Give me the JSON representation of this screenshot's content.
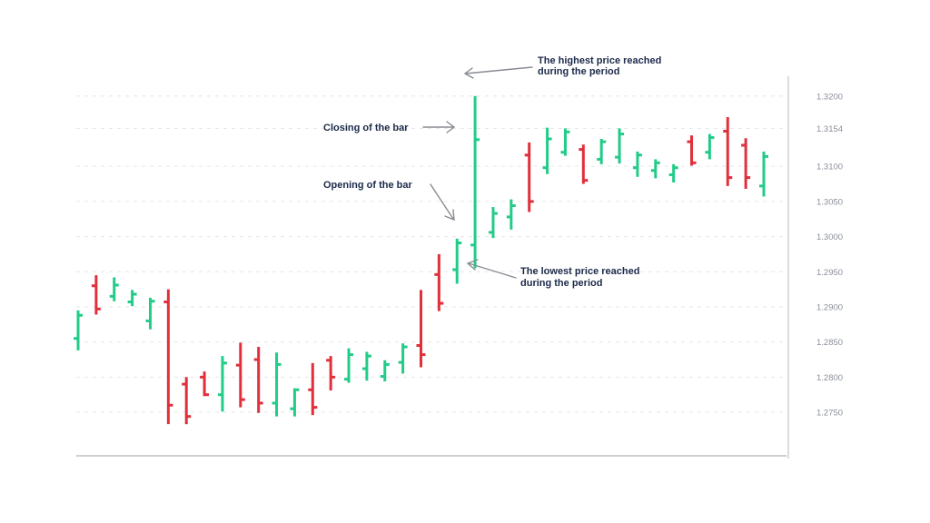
{
  "chart_data": {
    "type": "ohlc-bar",
    "title": "",
    "xlabel": "",
    "ylabel": "",
    "ylim": [
      1.2688,
      1.3223
    ],
    "y_ticks": [
      "1.3200",
      "1.3154",
      "1.3100",
      "1.3050",
      "1.3000",
      "1.2950",
      "1.2900",
      "1.2850",
      "1.2800",
      "1.2750"
    ],
    "grid": true,
    "colors": {
      "up": "#22cc88",
      "down": "#e0303c",
      "grid": "#e3e6ea",
      "axis": "#9aa0a8",
      "text": "#1c2a4a"
    },
    "bars": [
      {
        "open": 1.2855,
        "high": 1.2895,
        "low": 1.2838,
        "close": 1.2888
      },
      {
        "open": 1.293,
        "high": 1.2945,
        "low": 1.2889,
        "close": 1.2897
      },
      {
        "open": 1.2915,
        "high": 1.2942,
        "low": 1.2908,
        "close": 1.2931
      },
      {
        "open": 1.2907,
        "high": 1.2924,
        "low": 1.2901,
        "close": 1.2918
      },
      {
        "open": 1.288,
        "high": 1.2913,
        "low": 1.2868,
        "close": 1.2908
      },
      {
        "open": 1.2907,
        "high": 1.2925,
        "low": 1.2733,
        "close": 1.276
      },
      {
        "open": 1.279,
        "high": 1.28,
        "low": 1.2733,
        "close": 1.2744
      },
      {
        "open": 1.28,
        "high": 1.2808,
        "low": 1.2773,
        "close": 1.2775
      },
      {
        "open": 1.2775,
        "high": 1.283,
        "low": 1.2751,
        "close": 1.282
      },
      {
        "open": 1.2817,
        "high": 1.2849,
        "low": 1.2757,
        "close": 1.2768
      },
      {
        "open": 1.2825,
        "high": 1.2843,
        "low": 1.2749,
        "close": 1.2763
      },
      {
        "open": 1.2763,
        "high": 1.2835,
        "low": 1.2744,
        "close": 1.2818
      },
      {
        "open": 1.2755,
        "high": 1.2784,
        "low": 1.2744,
        "close": 1.2782
      },
      {
        "open": 1.2782,
        "high": 1.282,
        "low": 1.2746,
        "close": 1.2757
      },
      {
        "open": 1.2824,
        "high": 1.283,
        "low": 1.2781,
        "close": 1.28
      },
      {
        "open": 1.2797,
        "high": 1.2841,
        "low": 1.2792,
        "close": 1.2832
      },
      {
        "open": 1.2812,
        "high": 1.2836,
        "low": 1.2795,
        "close": 1.283
      },
      {
        "open": 1.2801,
        "high": 1.2824,
        "low": 1.2794,
        "close": 1.2818
      },
      {
        "open": 1.2821,
        "high": 1.2848,
        "low": 1.2805,
        "close": 1.2843
      },
      {
        "open": 1.2845,
        "high": 1.2924,
        "low": 1.2814,
        "close": 1.2832
      },
      {
        "open": 1.2946,
        "high": 1.2975,
        "low": 1.2894,
        "close": 1.2905
      },
      {
        "open": 1.2953,
        "high": 1.2997,
        "low": 1.2933,
        "close": 1.2991
      },
      {
        "open": 1.2988,
        "high": 1.32,
        "low": 1.2955,
        "close": 1.3138
      },
      {
        "open": 1.3006,
        "high": 1.3042,
        "low": 1.2998,
        "close": 1.3033
      },
      {
        "open": 1.3028,
        "high": 1.3053,
        "low": 1.301,
        "close": 1.3044
      },
      {
        "open": 1.3116,
        "high": 1.3134,
        "low": 1.3035,
        "close": 1.305
      },
      {
        "open": 1.3098,
        "high": 1.3155,
        "low": 1.3089,
        "close": 1.3139
      },
      {
        "open": 1.312,
        "high": 1.3154,
        "low": 1.3115,
        "close": 1.3149
      },
      {
        "open": 1.3124,
        "high": 1.3131,
        "low": 1.3075,
        "close": 1.308
      },
      {
        "open": 1.311,
        "high": 1.3139,
        "low": 1.3103,
        "close": 1.3135
      },
      {
        "open": 1.3113,
        "high": 1.3154,
        "low": 1.3104,
        "close": 1.3146
      },
      {
        "open": 1.3098,
        "high": 1.3121,
        "low": 1.3085,
        "close": 1.3116
      },
      {
        "open": 1.3094,
        "high": 1.311,
        "low": 1.3083,
        "close": 1.3105
      },
      {
        "open": 1.3088,
        "high": 1.3103,
        "low": 1.3077,
        "close": 1.3098
      },
      {
        "open": 1.3135,
        "high": 1.3144,
        "low": 1.3101,
        "close": 1.3105
      },
      {
        "open": 1.312,
        "high": 1.3146,
        "low": 1.311,
        "close": 1.3141
      },
      {
        "open": 1.315,
        "high": 1.317,
        "low": 1.3072,
        "close": 1.3084
      },
      {
        "open": 1.313,
        "high": 1.314,
        "low": 1.3068,
        "close": 1.3084
      },
      {
        "open": 1.3072,
        "high": 1.3121,
        "low": 1.3057,
        "close": 1.3114
      }
    ],
    "annotations": {
      "high": [
        "The highest price reached",
        "during the period"
      ],
      "close": [
        "Closing of the bar"
      ],
      "open": [
        "Opening of the bar"
      ],
      "low": [
        "The lowest price reached",
        "during the period"
      ]
    }
  }
}
